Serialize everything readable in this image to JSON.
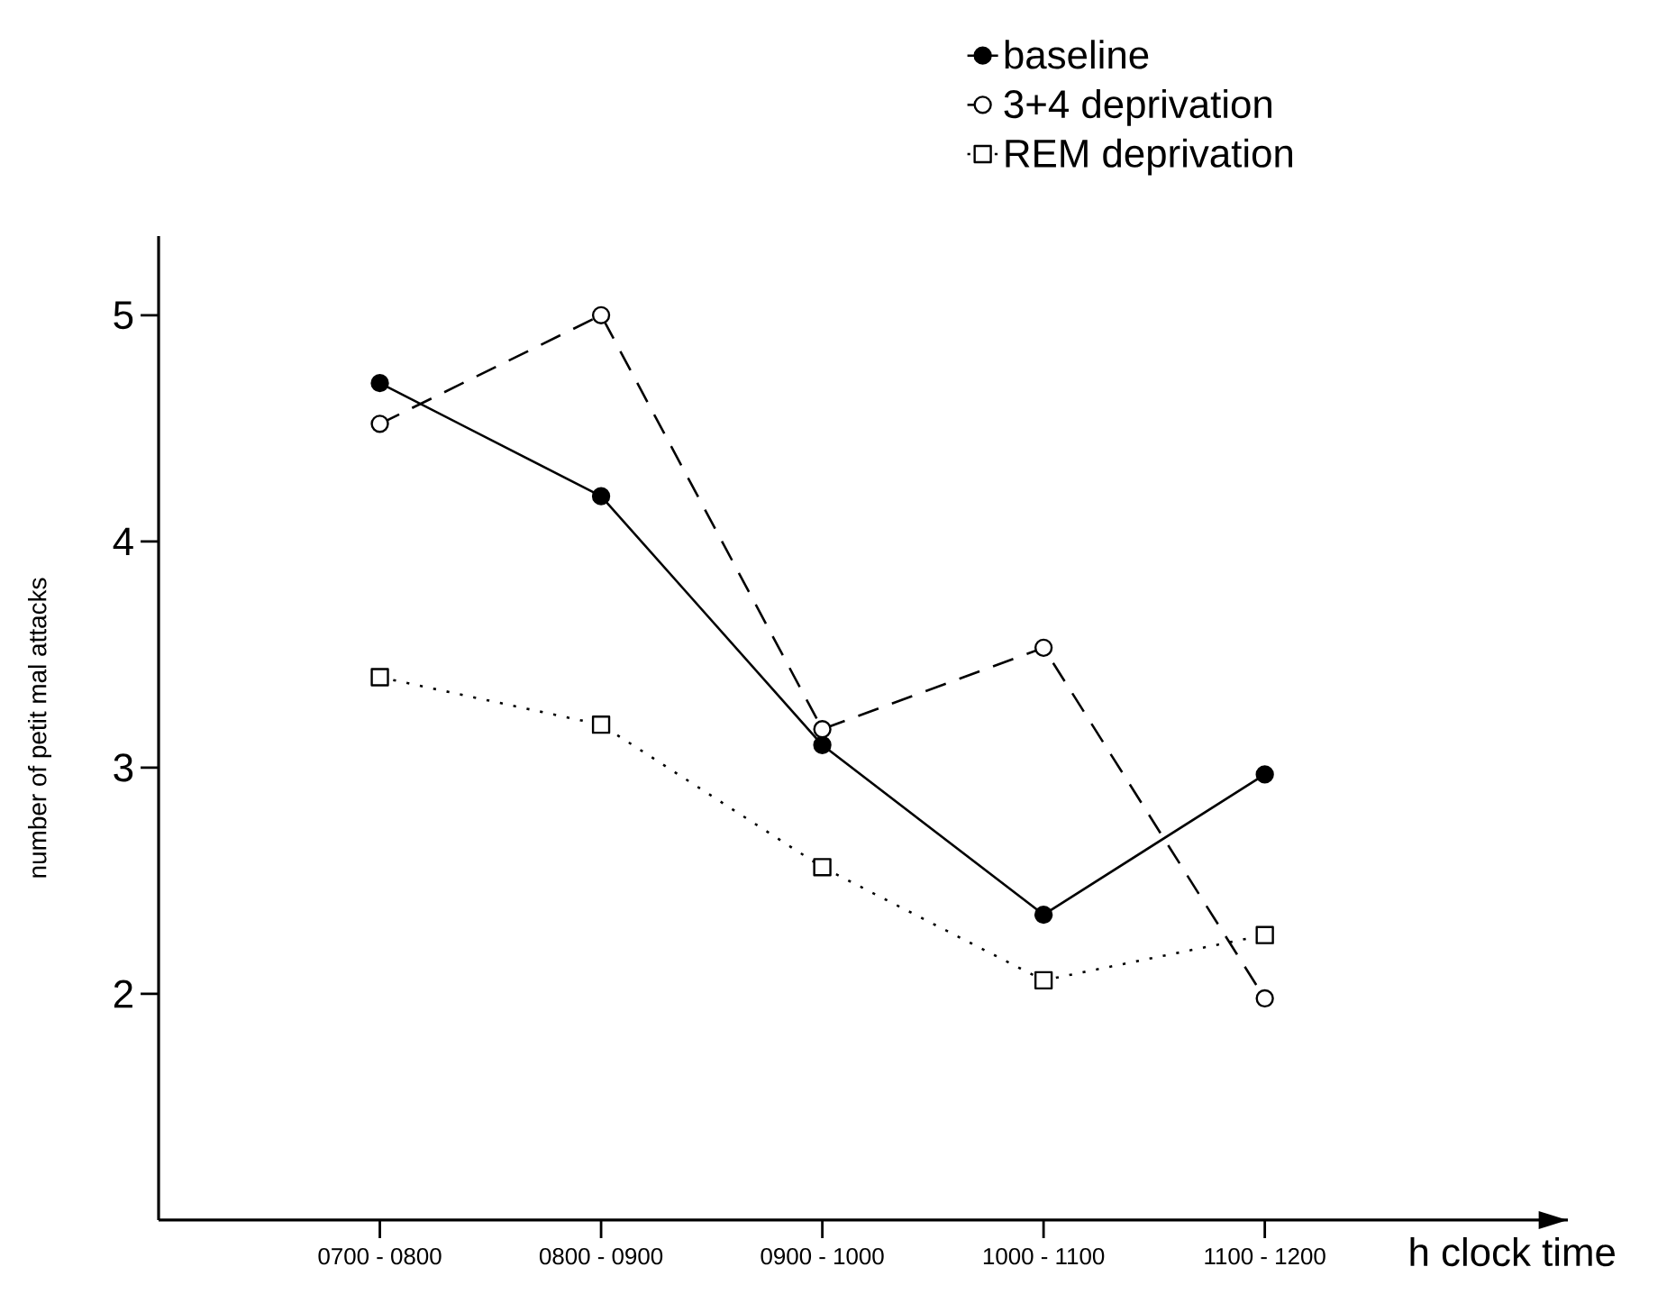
{
  "chart_data": {
    "type": "line",
    "ylabel": "number of petit mal attacks",
    "xlabel": "h  clock time",
    "categories": [
      "0700 - 0800",
      "0800 - 0900",
      "0900 - 1000",
      "1000 - 1100",
      "1100 - 1200"
    ],
    "ylim": [
      1,
      5.35
    ],
    "yticks": [
      2,
      3,
      4,
      5
    ],
    "legend": "top right",
    "grid": false,
    "series": [
      {
        "name": "baseline",
        "color": "#000000",
        "marker": "circle",
        "line_style": "solid",
        "values": [
          4.7,
          4.2,
          3.1,
          2.35,
          2.97
        ]
      },
      {
        "name": "3+4 deprivation",
        "color": "#000000",
        "marker": "circle",
        "line_style": "dashed",
        "values": [
          4.52,
          5.0,
          3.17,
          3.53,
          1.98
        ]
      },
      {
        "name": "REM deprivation",
        "color": "#000000",
        "marker": "square",
        "line_style": "dotted",
        "values": [
          3.4,
          3.19,
          2.56,
          2.06,
          2.26
        ]
      }
    ]
  }
}
